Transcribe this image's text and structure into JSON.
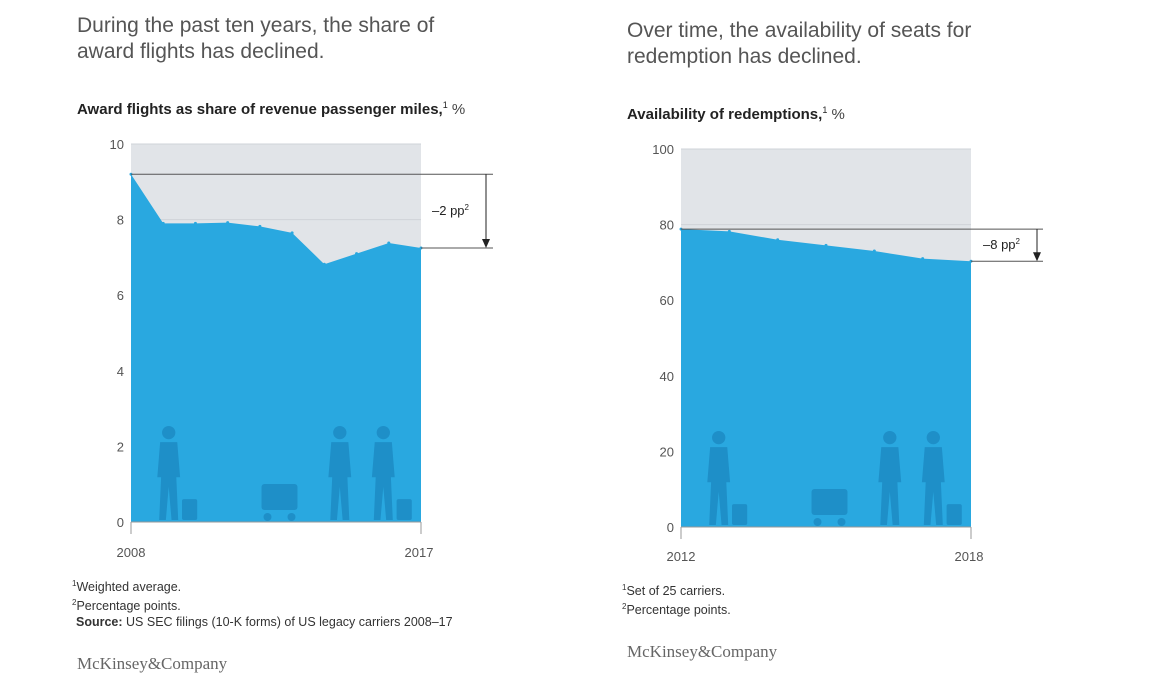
{
  "left": {
    "headline": "During the past ten years, the share of award flights has declined.",
    "subtitle": "Award flights as share of revenue passenger miles,",
    "subtitle_sup": "1",
    "unit": "%",
    "footnotes": [
      "Weighted average.",
      "Percentage points."
    ],
    "footnote_marks": [
      "1",
      "2"
    ],
    "source_label": "Source:",
    "source_text": "US SEC filings (10-K forms) of US legacy carriers 2008–17"
  },
  "right": {
    "headline": "Over time, the availability of seats for redemption has declined.",
    "subtitle": "Availability of redemptions,",
    "subtitle_sup": "1",
    "unit": "%",
    "footnotes": [
      "Set of 25 carriers.",
      "Percentage points."
    ],
    "footnote_marks": [
      "1",
      "2"
    ]
  },
  "logo": "McKinsey&Company",
  "colors": {
    "area": "#29a8e0",
    "background": "#e1e4e8",
    "silhouette": "#1e8fc8"
  },
  "chart_data": [
    {
      "type": "area",
      "x": [
        2008,
        2009,
        2010,
        2011,
        2012,
        2013,
        2014,
        2015,
        2016,
        2017
      ],
      "values": [
        9.2,
        7.9,
        7.9,
        7.92,
        7.82,
        7.65,
        6.82,
        7.1,
        7.38,
        7.25
      ],
      "ylim": [
        0,
        10
      ],
      "yticks": [
        "0",
        "2",
        "4",
        "6",
        "8",
        "10"
      ],
      "xticks": [
        "2008",
        "2017"
      ],
      "reference_start": 9.2,
      "reference_end": 7.25,
      "annotation": "–2 pp",
      "annotation_sup": "2"
    },
    {
      "type": "area",
      "x": [
        2012,
        2013,
        2014,
        2015,
        2016,
        2017,
        2018
      ],
      "values": [
        78.8,
        78.2,
        76.0,
        74.5,
        73.0,
        71.0,
        70.3
      ],
      "ylim": [
        0,
        100
      ],
      "yticks": [
        "0",
        "20",
        "40",
        "60",
        "80",
        "100"
      ],
      "xticks": [
        "2012",
        "2018"
      ],
      "reference_start": 78.8,
      "reference_end": 70.3,
      "annotation": "–8 pp",
      "annotation_sup": "2"
    }
  ]
}
